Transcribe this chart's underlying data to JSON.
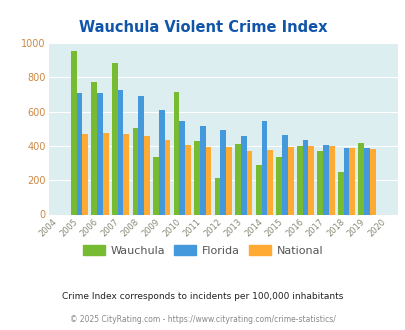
{
  "title": "Wauchula Violent Crime Index",
  "years": [
    2004,
    2005,
    2006,
    2007,
    2008,
    2009,
    2010,
    2011,
    2012,
    2013,
    2014,
    2015,
    2016,
    2017,
    2018,
    2019,
    2020
  ],
  "wauchula": [
    null,
    950,
    775,
    885,
    505,
    335,
    715,
    430,
    210,
    410,
    290,
    335,
    400,
    370,
    245,
    415,
    null
  ],
  "florida": [
    null,
    710,
    710,
    725,
    690,
    610,
    545,
    515,
    490,
    460,
    545,
    465,
    435,
    405,
    390,
    390,
    null
  ],
  "national": [
    null,
    470,
    475,
    470,
    460,
    435,
    405,
    395,
    395,
    370,
    375,
    395,
    400,
    400,
    385,
    380,
    null
  ],
  "wauchula_color": "#77bb33",
  "florida_color": "#4499dd",
  "national_color": "#ffaa33",
  "bg_color": "#ddeef0",
  "grid_color": "#ffffff",
  "ylim": [
    0,
    1000
  ],
  "yticks": [
    0,
    200,
    400,
    600,
    800,
    1000
  ],
  "title_color": "#1155aa",
  "footer1": "Crime Index corresponds to incidents per 100,000 inhabitants",
  "footer2": "© 2025 CityRating.com - https://www.cityrating.com/crime-statistics/",
  "bar_width": 0.28,
  "legend_labels": [
    "Wauchula",
    "Florida",
    "National"
  ]
}
